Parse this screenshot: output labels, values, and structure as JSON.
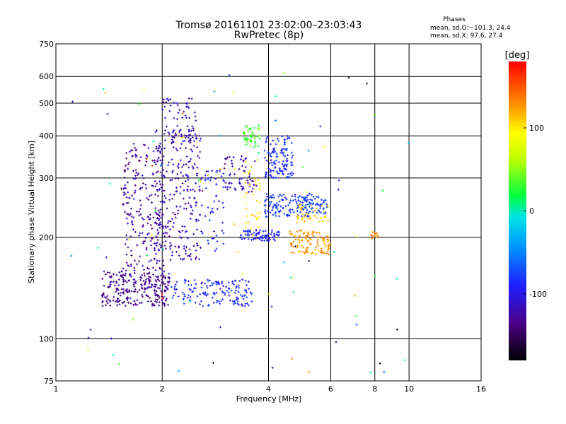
{
  "chart_data": {
    "type": "scatter",
    "title": "Tromsø 20161101 23:02:00–23:03:43",
    "subtitle": "RwPretec (8p)",
    "xlabel": "Frequency [MHz]",
    "ylabel": "Stationary phase Virtual Height [km]",
    "x_scale": "log",
    "y_scale": "log",
    "xlim": [
      1,
      16
    ],
    "ylim": [
      75,
      750
    ],
    "x_ticks": [
      1,
      2,
      4,
      6,
      8,
      10,
      16
    ],
    "y_ticks": [
      75,
      100,
      200,
      300,
      400,
      500,
      600,
      750
    ],
    "grid": true,
    "stats": {
      "heading": "Phases",
      "line_o": "mean, sd,O:−101.3, 24.4",
      "line_x": "mean, sd,X:  97.6, 27.4"
    },
    "colorbar": {
      "label": "[deg]",
      "range": [
        -180,
        180
      ],
      "ticks": [
        100,
        0,
        -100
      ]
    },
    "clusters": [
      {
        "name": "low-purple",
        "x": [
          1.35,
          2.1
        ],
        "y": [
          125,
          160
        ],
        "phase": -135,
        "n": 260
      },
      {
        "name": "purple-column",
        "x": [
          1.55,
          2.05
        ],
        "y": [
          160,
          380
        ],
        "phase": -130,
        "n": 220
      },
      {
        "name": "purple-upper",
        "x": [
          1.9,
          2.6
        ],
        "y": [
          170,
          420
        ],
        "phase": -125,
        "n": 260
      },
      {
        "name": "purple-top",
        "x": [
          2.0,
          2.5
        ],
        "y": [
          380,
          520
        ],
        "phase": -120,
        "n": 60
      },
      {
        "name": "blue-low",
        "x": [
          2.1,
          3.0
        ],
        "y": [
          125,
          150
        ],
        "phase": -95,
        "n": 90
      },
      {
        "name": "blue-mid",
        "x": [
          2.6,
          3.0
        ],
        "y": [
          180,
          320
        ],
        "phase": -100,
        "n": 50
      },
      {
        "name": "blue-f",
        "x": [
          3.0,
          3.6
        ],
        "y": [
          125,
          150
        ],
        "phase": -95,
        "n": 60
      },
      {
        "name": "purple-f2",
        "x": [
          3.0,
          3.7
        ],
        "y": [
          270,
          350
        ],
        "phase": -125,
        "n": 60
      },
      {
        "name": "green-top",
        "x": [
          3.4,
          3.8
        ],
        "y": [
          370,
          430
        ],
        "phase": 40,
        "n": 45
      },
      {
        "name": "yellow-mid",
        "x": [
          3.4,
          3.8
        ],
        "y": [
          200,
          340
        ],
        "phase": 110,
        "n": 40
      },
      {
        "name": "blue-band-200",
        "x": [
          3.3,
          4.3
        ],
        "y": [
          195,
          210
        ],
        "phase": -100,
        "n": 80
      },
      {
        "name": "blue-upper-4",
        "x": [
          3.9,
          4.7
        ],
        "y": [
          300,
          400
        ],
        "phase": -95,
        "n": 120
      },
      {
        "name": "blue-band-250",
        "x": [
          3.9,
          5.3
        ],
        "y": [
          230,
          270
        ],
        "phase": -90,
        "n": 120
      },
      {
        "name": "orange-band",
        "x": [
          4.6,
          6.0
        ],
        "y": [
          178,
          210
        ],
        "phase": 135,
        "n": 110
      },
      {
        "name": "orange-band-2",
        "x": [
          4.8,
          5.9
        ],
        "y": [
          220,
          250
        ],
        "phase": 120,
        "n": 40
      },
      {
        "name": "blue-right",
        "x": [
          5.0,
          5.9
        ],
        "y": [
          235,
          265
        ],
        "phase": -85,
        "n": 50
      },
      {
        "name": "orange-8",
        "x": [
          7.8,
          8.2
        ],
        "y": [
          198,
          208
        ],
        "phase": 140,
        "n": 14
      },
      {
        "name": "scatter",
        "x": [
          1.05,
          10.0
        ],
        "y": [
          78,
          620
        ],
        "phase": 0,
        "n": 90
      }
    ]
  }
}
